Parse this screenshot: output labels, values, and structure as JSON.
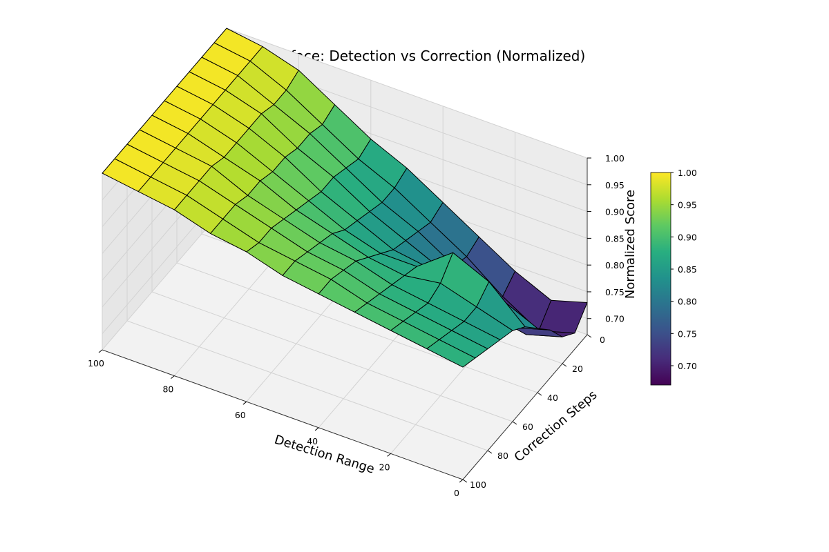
{
  "chart_data": {
    "type": "surface3d",
    "title": "Score Surface: Detection vs Correction (Normalized)",
    "xlabel": "Detection Range",
    "ylabel": "Correction Steps",
    "zlabel": "Normalized Score",
    "xlim": [
      0,
      100
    ],
    "ylim": [
      0,
      100
    ],
    "zlim": [
      0.67,
      1.0
    ],
    "xticks": [
      "0",
      "20",
      "40",
      "60",
      "80",
      "100"
    ],
    "yticks": [
      "0",
      "20",
      "40",
      "60",
      "80",
      "100"
    ],
    "zticks": [
      "0.70",
      "0.75",
      "0.80",
      "0.85",
      "0.90",
      "0.95",
      "1.00"
    ],
    "colorbar": {
      "colormap": "viridis",
      "range": [
        0.67,
        1.0
      ],
      "ticks": [
        "0.70",
        "0.75",
        "0.80",
        "0.85",
        "0.90",
        "0.95",
        "1.00"
      ]
    },
    "x": [
      0,
      10,
      20,
      30,
      40,
      50,
      60,
      70,
      80,
      90,
      100
    ],
    "y": [
      0,
      10,
      20,
      30,
      40,
      50,
      60,
      70,
      80,
      90,
      100
    ],
    "z": [
      [
        0.73,
        0.71,
        0.74,
        0.78,
        0.82,
        0.86,
        0.89,
        0.93,
        0.97,
        0.99,
        1.0
      ],
      [
        0.7,
        0.68,
        0.72,
        0.77,
        0.81,
        0.85,
        0.88,
        0.92,
        0.96,
        0.99,
        1.0
      ],
      [
        0.72,
        0.7,
        0.73,
        0.78,
        0.82,
        0.85,
        0.89,
        0.93,
        0.96,
        0.99,
        1.0
      ],
      [
        0.76,
        0.74,
        0.77,
        0.8,
        0.83,
        0.86,
        0.9,
        0.93,
        0.97,
        0.99,
        1.0
      ],
      [
        0.79,
        0.82,
        0.86,
        0.83,
        0.84,
        0.87,
        0.9,
        0.94,
        0.97,
        0.99,
        1.0
      ],
      [
        0.82,
        0.88,
        0.91,
        0.86,
        0.86,
        0.88,
        0.91,
        0.94,
        0.97,
        0.99,
        1.0
      ],
      [
        0.84,
        0.86,
        0.88,
        0.87,
        0.88,
        0.9,
        0.92,
        0.95,
        0.97,
        0.99,
        1.0
      ],
      [
        0.85,
        0.86,
        0.87,
        0.88,
        0.9,
        0.91,
        0.93,
        0.95,
        0.98,
        0.99,
        1.0
      ],
      [
        0.86,
        0.87,
        0.88,
        0.89,
        0.91,
        0.92,
        0.94,
        0.96,
        0.98,
        0.99,
        1.0
      ],
      [
        0.87,
        0.88,
        0.89,
        0.9,
        0.92,
        0.93,
        0.94,
        0.96,
        0.98,
        0.99,
        1.0
      ],
      [
        0.88,
        0.89,
        0.9,
        0.91,
        0.92,
        0.93,
        0.95,
        0.96,
        0.98,
        0.99,
        1.0
      ]
    ]
  }
}
